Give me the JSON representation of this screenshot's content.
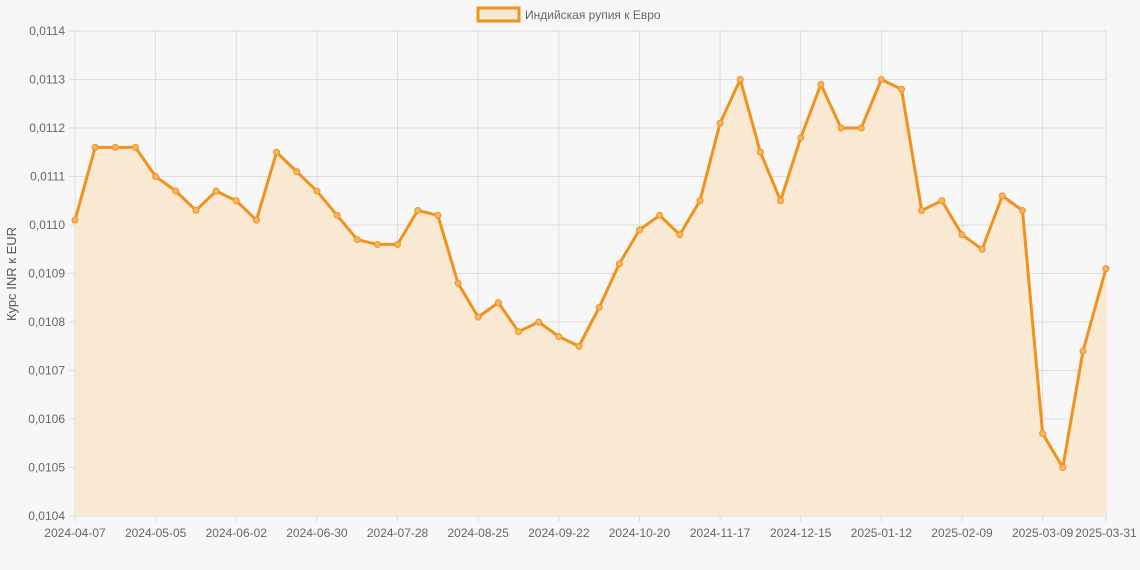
{
  "chart_data": {
    "type": "area",
    "title": "",
    "xlabel": "",
    "ylabel": "Курс INR к EUR",
    "legend": {
      "position": "top-center",
      "entries": [
        "Индийская рупия к Евро"
      ]
    },
    "grid": true,
    "ylim": [
      0.0104,
      0.0114
    ],
    "y_ticks": [
      "0,0104",
      "0,0105",
      "0,0106",
      "0,0107",
      "0,0108",
      "0,0109",
      "0,0110",
      "0,0111",
      "0,0112",
      "0,0113",
      "0,0114"
    ],
    "x_ticks": [
      "2024-04-07",
      "2024-05-05",
      "2024-06-02",
      "2024-06-30",
      "2024-07-28",
      "2024-08-25",
      "2024-09-22",
      "2024-10-20",
      "2024-11-17",
      "2024-12-15",
      "2025-01-12",
      "2025-02-09",
      "2025-03-09",
      "2025-03-31"
    ],
    "colors": {
      "line": "#f0921e",
      "fill": "#f9e8d2",
      "point": "#f5b565"
    },
    "series": [
      {
        "name": "Индийская рупия к Евро",
        "x": [
          "2024-04-07",
          "2024-04-14",
          "2024-04-21",
          "2024-04-28",
          "2024-05-05",
          "2024-05-12",
          "2024-05-19",
          "2024-05-26",
          "2024-06-02",
          "2024-06-09",
          "2024-06-16",
          "2024-06-23",
          "2024-06-30",
          "2024-07-07",
          "2024-07-14",
          "2024-07-21",
          "2024-07-28",
          "2024-08-04",
          "2024-08-11",
          "2024-08-18",
          "2024-08-25",
          "2024-09-01",
          "2024-09-08",
          "2024-09-15",
          "2024-09-22",
          "2024-09-29",
          "2024-10-06",
          "2024-10-13",
          "2024-10-20",
          "2024-10-27",
          "2024-11-03",
          "2024-11-10",
          "2024-11-17",
          "2024-11-24",
          "2024-12-01",
          "2024-12-08",
          "2024-12-15",
          "2024-12-22",
          "2024-12-29",
          "2025-01-05",
          "2025-01-12",
          "2025-01-19",
          "2025-01-26",
          "2025-02-02",
          "2025-02-09",
          "2025-02-16",
          "2025-02-23",
          "2025-03-02",
          "2025-03-09",
          "2025-03-16",
          "2025-03-23",
          "2025-03-31"
        ],
        "values": [
          0.01101,
          0.01116,
          0.01116,
          0.01116,
          0.0111,
          0.01107,
          0.01103,
          0.01107,
          0.01105,
          0.01101,
          0.01115,
          0.01111,
          0.01107,
          0.01102,
          0.01097,
          0.01096,
          0.01096,
          0.01103,
          0.01102,
          0.01088,
          0.01081,
          0.01084,
          0.01078,
          0.0108,
          0.01077,
          0.01075,
          0.01083,
          0.01092,
          0.01099,
          0.01102,
          0.01098,
          0.01105,
          0.01121,
          0.0113,
          0.01115,
          0.01105,
          0.01118,
          0.01129,
          0.0112,
          0.0112,
          0.0113,
          0.01128,
          0.01103,
          0.01105,
          0.01098,
          0.01095,
          0.01106,
          0.01103,
          0.01057,
          0.0105,
          0.01074,
          0.01091
        ]
      }
    ]
  }
}
